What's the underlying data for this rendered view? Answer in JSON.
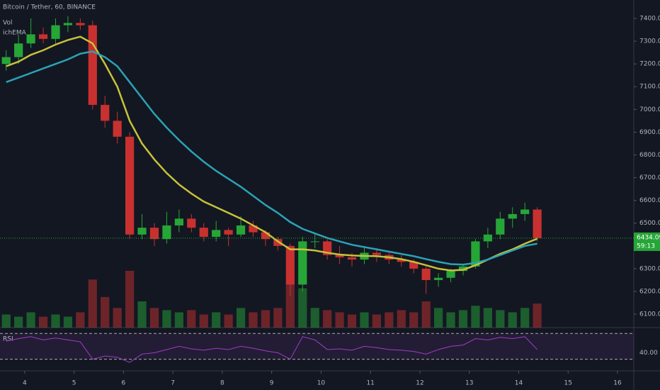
{
  "header": {
    "symbol": "Bitcoin / Tether, 60, BINANCE",
    "study_1": "Vol",
    "study_2": "ichEMA",
    "last_price": 6434.09,
    "countdown": "59:13"
  },
  "chart_data": [
    {
      "type": "candlestick",
      "x": [
        3.625,
        3.875,
        4.125,
        4.375,
        4.625,
        4.875,
        5.125,
        5.375,
        5.625,
        5.875,
        6.125,
        6.375,
        6.625,
        6.875,
        7.125,
        7.375,
        7.625,
        7.875,
        8.125,
        8.375,
        8.625,
        8.875,
        9.125,
        9.375,
        9.625,
        9.875,
        10.125,
        10.375,
        10.625,
        10.875,
        11.125,
        11.375,
        11.625,
        11.875,
        12.125,
        12.375,
        12.625,
        12.875,
        13.125,
        13.375,
        13.625,
        13.875,
        14.125,
        14.375
      ],
      "open": [
        7200,
        7230,
        7290,
        7330,
        7310,
        7370,
        7380,
        7370,
        7020,
        6950,
        6880,
        6450,
        6480,
        6430,
        6490,
        6520,
        6480,
        6440,
        6470,
        6450,
        6490,
        6460,
        6430,
        6400,
        6230,
        6420,
        6420,
        6360,
        6350,
        6340,
        6370,
        6360,
        6340,
        6330,
        6300,
        6250,
        6260,
        6290,
        6310,
        6420,
        6450,
        6520,
        6540,
        6560
      ],
      "high": [
        7260,
        7330,
        7400,
        7360,
        7400,
        7410,
        7400,
        7390,
        7060,
        6990,
        6900,
        6540,
        6500,
        6550,
        6560,
        6540,
        6500,
        6510,
        6480,
        6530,
        6510,
        6470,
        6440,
        6410,
        6440,
        6450,
        6430,
        6400,
        6370,
        6400,
        6390,
        6370,
        6360,
        6340,
        6310,
        6280,
        6300,
        6320,
        6430,
        6480,
        6550,
        6570,
        6590,
        6570
      ],
      "low": [
        7170,
        7200,
        7270,
        7290,
        7290,
        7340,
        7350,
        7000,
        6920,
        6850,
        6430,
        6430,
        6400,
        6410,
        6460,
        6460,
        6420,
        6420,
        6400,
        6440,
        6440,
        6400,
        6380,
        6180,
        6200,
        6390,
        6340,
        6320,
        6310,
        6320,
        6330,
        6320,
        6310,
        6280,
        6190,
        6220,
        6240,
        6270,
        6300,
        6390,
        6430,
        6480,
        6510,
        6420
      ],
      "close": [
        7230,
        7290,
        7330,
        7310,
        7370,
        7380,
        7370,
        7020,
        6950,
        6880,
        6450,
        6480,
        6430,
        6490,
        6520,
        6480,
        6440,
        6470,
        6450,
        6490,
        6460,
        6430,
        6400,
        6230,
        6420,
        6420,
        6360,
        6350,
        6340,
        6370,
        6360,
        6340,
        6330,
        6300,
        6250,
        6260,
        6290,
        6310,
        6420,
        6450,
        6520,
        6540,
        6560,
        6434
      ],
      "volume": [
        600,
        500,
        700,
        500,
        600,
        500,
        700,
        2200,
        1400,
        900,
        2600,
        1200,
        900,
        800,
        700,
        800,
        600,
        700,
        600,
        900,
        700,
        800,
        900,
        2000,
        1800,
        900,
        800,
        700,
        600,
        700,
        600,
        700,
        800,
        700,
        1200,
        900,
        700,
        800,
        1000,
        900,
        800,
        700,
        900,
        1100
      ],
      "volume_lim": [
        0,
        15000
      ],
      "up_color": "#26a637",
      "down_color": "#c8312f",
      "series": [
        {
          "color": "#c7c23a",
          "values": [
            7190,
            7210,
            7240,
            7260,
            7285,
            7305,
            7320,
            7290,
            7200,
            7100,
            6950,
            6850,
            6780,
            6720,
            6670,
            6630,
            6595,
            6570,
            6545,
            6520,
            6490,
            6460,
            6420,
            6385,
            6385,
            6380,
            6370,
            6362,
            6358,
            6356,
            6355,
            6350,
            6342,
            6330,
            6315,
            6300,
            6292,
            6295,
            6315,
            6340,
            6365,
            6385,
            6410,
            6432
          ]
        },
        {
          "color": "#2aa3b5",
          "values": [
            7120,
            7140,
            7160,
            7180,
            7200,
            7220,
            7245,
            7255,
            7230,
            7190,
            7120,
            7050,
            6980,
            6920,
            6865,
            6815,
            6770,
            6730,
            6695,
            6660,
            6620,
            6580,
            6545,
            6505,
            6475,
            6455,
            6435,
            6420,
            6405,
            6395,
            6385,
            6375,
            6365,
            6355,
            6342,
            6330,
            6320,
            6318,
            6325,
            6340,
            6360,
            6380,
            6400,
            6410
          ]
        }
      ],
      "xlim": [
        3.5,
        16.33
      ],
      "xticks": [
        4,
        5,
        6,
        7,
        8,
        9,
        10,
        11,
        12,
        13,
        14,
        15,
        16
      ],
      "ylim": [
        6041,
        7481
      ],
      "yticks": [
        {
          "value": 6100,
          "label": "6100.00"
        },
        {
          "value": 6200,
          "label": "6200.00"
        },
        {
          "value": 6300,
          "label": "6300.00"
        },
        {
          "value": 6400,
          "label": "6400.00"
        },
        {
          "value": 6500,
          "label": "6500.00"
        },
        {
          "value": 6600,
          "label": "6600.00"
        },
        {
          "value": 6700,
          "label": "6700.00"
        },
        {
          "value": 6800,
          "label": "6800.00"
        },
        {
          "value": 6900,
          "label": "6900.00"
        },
        {
          "value": 7000,
          "label": "7000.00"
        },
        {
          "value": 7100,
          "label": "7100.00"
        },
        {
          "value": 7200,
          "label": "7200.00"
        },
        {
          "value": 7300,
          "label": "7300.00"
        },
        {
          "value": 7400,
          "label": "7400.00"
        }
      ]
    },
    {
      "type": "line",
      "title": "RSI",
      "color": "#9c3fc4",
      "values": [
        58,
        62,
        65,
        60,
        63,
        60,
        57,
        30,
        35,
        33,
        25,
        38,
        40,
        45,
        50,
        46,
        44,
        47,
        45,
        50,
        47,
        43,
        40,
        30,
        65,
        60,
        45,
        46,
        44,
        50,
        48,
        45,
        44,
        42,
        38,
        45,
        50,
        52,
        62,
        60,
        64,
        62,
        65,
        45
      ],
      "ylim": [
        13,
        78
      ],
      "yticks": [
        {
          "value": 40,
          "label": "40.00"
        }
      ],
      "bands": [
        30,
        70
      ]
    }
  ]
}
